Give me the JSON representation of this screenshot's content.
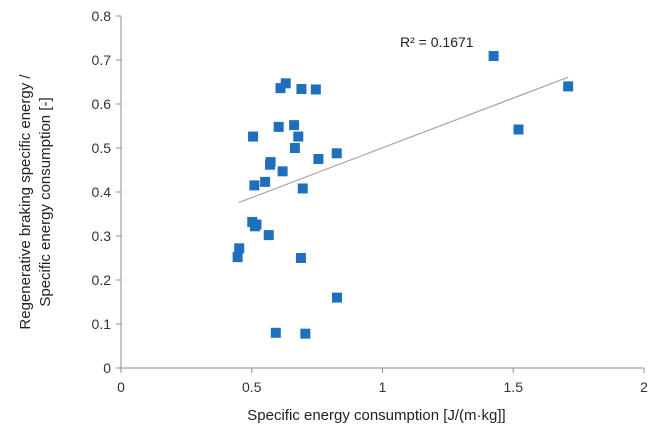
{
  "chart_data": {
    "type": "scatter",
    "xlabel": "Specific energy consumption [J/(m·kg]]",
    "ylabel_lines": [
      "Regenerative braking specific energy /",
      "Specific energy consumption [-]"
    ],
    "xlim": [
      0,
      2
    ],
    "ylim": [
      0,
      0.8
    ],
    "xticks": [
      0,
      0.5,
      1,
      1.5,
      2
    ],
    "yticks": [
      0,
      0.1,
      0.2,
      0.3,
      0.4,
      0.5,
      0.6,
      0.7,
      0.8
    ],
    "x_tick_labels": [
      "0",
      "0.5",
      "1",
      "1.5",
      "2"
    ],
    "y_tick_labels": [
      "0",
      "0.1",
      "0.2",
      "0.3",
      "0.4",
      "0.5",
      "0.6",
      "0.7",
      "0.8"
    ],
    "grid": false,
    "marker_color": "#1f6fbf",
    "trendline_color": "#a6a6a6",
    "annotation": "R² = 0.1671",
    "trendline": {
      "x": [
        0.45,
        1.71
      ],
      "y": [
        0.376,
        0.661
      ]
    },
    "points": [
      {
        "x": 0.446,
        "y": 0.252
      },
      {
        "x": 0.452,
        "y": 0.272
      },
      {
        "x": 0.502,
        "y": 0.332
      },
      {
        "x": 0.512,
        "y": 0.322
      },
      {
        "x": 0.518,
        "y": 0.326
      },
      {
        "x": 0.505,
        "y": 0.526
      },
      {
        "x": 0.51,
        "y": 0.415
      },
      {
        "x": 0.551,
        "y": 0.423
      },
      {
        "x": 0.565,
        "y": 0.302
      },
      {
        "x": 0.57,
        "y": 0.462
      },
      {
        "x": 0.572,
        "y": 0.468
      },
      {
        "x": 0.592,
        "y": 0.08
      },
      {
        "x": 0.603,
        "y": 0.548
      },
      {
        "x": 0.61,
        "y": 0.636
      },
      {
        "x": 0.618,
        "y": 0.447
      },
      {
        "x": 0.63,
        "y": 0.647
      },
      {
        "x": 0.662,
        "y": 0.552
      },
      {
        "x": 0.665,
        "y": 0.5
      },
      {
        "x": 0.678,
        "y": 0.526
      },
      {
        "x": 0.688,
        "y": 0.25
      },
      {
        "x": 0.69,
        "y": 0.634
      },
      {
        "x": 0.695,
        "y": 0.408
      },
      {
        "x": 0.705,
        "y": 0.078
      },
      {
        "x": 0.745,
        "y": 0.633
      },
      {
        "x": 0.755,
        "y": 0.475
      },
      {
        "x": 0.825,
        "y": 0.488
      },
      {
        "x": 0.826,
        "y": 0.16
      },
      {
        "x": 1.425,
        "y": 0.709
      },
      {
        "x": 1.52,
        "y": 0.542
      },
      {
        "x": 1.71,
        "y": 0.64
      }
    ]
  }
}
